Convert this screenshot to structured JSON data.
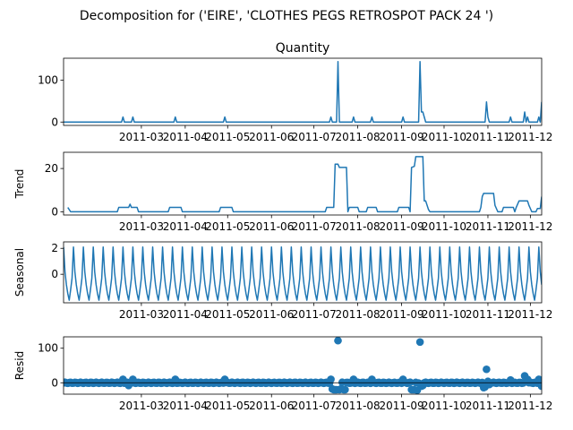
{
  "chart_data": {
    "type": "line",
    "suptitle": "Decomposition for ('EIRE', 'CLOTHES PEGS RETROSPOT PACK 24 ')",
    "color": "#1f77b4",
    "x_range": [
      "2011-01-05",
      "2011-12-09"
    ],
    "x_ticks": [
      "2011-03",
      "2011-04",
      "2011-05",
      "2011-06",
      "2011-07",
      "2011-08",
      "2011-09",
      "2011-10",
      "2011-11",
      "2011-12"
    ],
    "x_tick_dates": [
      "2011-03-01",
      "2011-04-01",
      "2011-05-01",
      "2011-06-01",
      "2011-07-01",
      "2011-08-01",
      "2011-09-01",
      "2011-10-01",
      "2011-11-01",
      "2011-12-01"
    ],
    "panels": [
      {
        "title": "Quantity",
        "ylabel": "",
        "kind": "line",
        "ylim": [
          -8,
          152
        ],
        "yticks": [
          0,
          100
        ],
        "base": 0,
        "points": [
          [
            "2011-01-05",
            0
          ],
          [
            "2011-02-15",
            0
          ],
          [
            "2011-02-16",
            12
          ],
          [
            "2011-02-17",
            0
          ],
          [
            "2011-02-22",
            0
          ],
          [
            "2011-02-23",
            12
          ],
          [
            "2011-02-24",
            0
          ],
          [
            "2011-03-24",
            0
          ],
          [
            "2011-03-25",
            12
          ],
          [
            "2011-03-26",
            0
          ],
          [
            "2011-04-28",
            0
          ],
          [
            "2011-04-29",
            12
          ],
          [
            "2011-04-30",
            0
          ],
          [
            "2011-07-12",
            0
          ],
          [
            "2011-07-13",
            12
          ],
          [
            "2011-07-14",
            0
          ],
          [
            "2011-07-17",
            0
          ],
          [
            "2011-07-18",
            144
          ],
          [
            "2011-07-19",
            0
          ],
          [
            "2011-07-28",
            0
          ],
          [
            "2011-07-29",
            12
          ],
          [
            "2011-07-30",
            0
          ],
          [
            "2011-08-10",
            0
          ],
          [
            "2011-08-11",
            12
          ],
          [
            "2011-08-12",
            0
          ],
          [
            "2011-09-01",
            0
          ],
          [
            "2011-09-02",
            12
          ],
          [
            "2011-09-03",
            0
          ],
          [
            "2011-09-13",
            0
          ],
          [
            "2011-09-14",
            144
          ],
          [
            "2011-09-15",
            24
          ],
          [
            "2011-09-16",
            24
          ],
          [
            "2011-09-17",
            12
          ],
          [
            "2011-09-18",
            0
          ],
          [
            "2011-10-30",
            0
          ],
          [
            "2011-10-31",
            48
          ],
          [
            "2011-11-01",
            12
          ],
          [
            "2011-11-02",
            0
          ],
          [
            "2011-11-16",
            0
          ],
          [
            "2011-11-17",
            12
          ],
          [
            "2011-11-18",
            0
          ],
          [
            "2011-11-26",
            0
          ],
          [
            "2011-11-27",
            24
          ],
          [
            "2011-11-28",
            0
          ],
          [
            "2011-11-29",
            12
          ],
          [
            "2011-11-30",
            0
          ],
          [
            "2011-12-06",
            0
          ],
          [
            "2011-12-07",
            12
          ],
          [
            "2011-12-08",
            0
          ],
          [
            "2011-12-09",
            48
          ]
        ]
      },
      {
        "title": "",
        "ylabel": "Trend",
        "kind": "line",
        "ylim": [
          -1.5,
          27.5
        ],
        "yticks": [
          0,
          20
        ],
        "base": 0,
        "points": [
          [
            "2011-01-08",
            2
          ],
          [
            "2011-01-10",
            0
          ],
          [
            "2011-02-12",
            0
          ],
          [
            "2011-02-13",
            2
          ],
          [
            "2011-02-20",
            2
          ],
          [
            "2011-02-21",
            3.5
          ],
          [
            "2011-02-22",
            2
          ],
          [
            "2011-02-26",
            2
          ],
          [
            "2011-02-27",
            0
          ],
          [
            "2011-03-20",
            0
          ],
          [
            "2011-03-21",
            2
          ],
          [
            "2011-03-29",
            2
          ],
          [
            "2011-03-30",
            0
          ],
          [
            "2011-04-25",
            0
          ],
          [
            "2011-04-26",
            2
          ],
          [
            "2011-05-04",
            2
          ],
          [
            "2011-05-05",
            0
          ],
          [
            "2011-07-09",
            0
          ],
          [
            "2011-07-10",
            2
          ],
          [
            "2011-07-15",
            2
          ],
          [
            "2011-07-16",
            22
          ],
          [
            "2011-07-18",
            22
          ],
          [
            "2011-07-19",
            20.5
          ],
          [
            "2011-07-24",
            20.5
          ],
          [
            "2011-07-25",
            0
          ],
          [
            "2011-07-26",
            2
          ],
          [
            "2011-08-01",
            2
          ],
          [
            "2011-08-02",
            0
          ],
          [
            "2011-08-07",
            0
          ],
          [
            "2011-08-08",
            2
          ],
          [
            "2011-08-14",
            2
          ],
          [
            "2011-08-15",
            0
          ],
          [
            "2011-08-29",
            0
          ],
          [
            "2011-08-30",
            2
          ],
          [
            "2011-09-06",
            2
          ],
          [
            "2011-09-07",
            0
          ],
          [
            "2011-09-08",
            20.5
          ],
          [
            "2011-09-10",
            21
          ],
          [
            "2011-09-11",
            25.5
          ],
          [
            "2011-09-16",
            25.5
          ],
          [
            "2011-09-17",
            5
          ],
          [
            "2011-09-18",
            5
          ],
          [
            "2011-09-20",
            1
          ],
          [
            "2011-09-21",
            0
          ],
          [
            "2011-10-26",
            0
          ],
          [
            "2011-10-27",
            2
          ],
          [
            "2011-10-28",
            7
          ],
          [
            "2011-10-29",
            8.5
          ],
          [
            "2011-11-05",
            8.5
          ],
          [
            "2011-11-06",
            3
          ],
          [
            "2011-11-08",
            0
          ],
          [
            "2011-11-11",
            0
          ],
          [
            "2011-11-12",
            2
          ],
          [
            "2011-11-19",
            2
          ],
          [
            "2011-11-20",
            0
          ],
          [
            "2011-11-21",
            2
          ],
          [
            "2011-11-22",
            3.5
          ],
          [
            "2011-11-23",
            5
          ],
          [
            "2011-11-29",
            5
          ],
          [
            "2011-11-30",
            3
          ],
          [
            "2011-12-01",
            1.5
          ],
          [
            "2011-12-02",
            0
          ],
          [
            "2011-12-05",
            0
          ],
          [
            "2011-12-06",
            1.5
          ],
          [
            "2011-12-08",
            1.5
          ],
          [
            "2011-12-09",
            7
          ]
        ]
      },
      {
        "title": "",
        "ylabel": "Seasonal",
        "kind": "seasonal",
        "ylim": [
          -2.2,
          2.5
        ],
        "yticks": [
          0,
          2
        ],
        "period_days": 7,
        "pattern": [
          2.1,
          0.2,
          -0.8,
          -1.5,
          -2.0,
          -1.2,
          -0.3
        ]
      },
      {
        "title": "",
        "ylabel": "Resid",
        "kind": "scatter",
        "ylim": [
          -33,
          133
        ],
        "yticks": [
          0,
          100
        ],
        "base": 0,
        "baseline_jitter": 1.5,
        "outliers": [
          [
            "2011-02-16",
            10
          ],
          [
            "2011-02-20",
            -8
          ],
          [
            "2011-02-23",
            10
          ],
          [
            "2011-03-25",
            10
          ],
          [
            "2011-04-29",
            10
          ],
          [
            "2011-07-13",
            10
          ],
          [
            "2011-07-14",
            -18
          ],
          [
            "2011-07-15",
            -20
          ],
          [
            "2011-07-16",
            -20
          ],
          [
            "2011-07-17",
            -20
          ],
          [
            "2011-07-18",
            122
          ],
          [
            "2011-07-19",
            -20
          ],
          [
            "2011-07-20",
            -18
          ],
          [
            "2011-07-22",
            -20
          ],
          [
            "2011-07-23",
            -20
          ],
          [
            "2011-07-29",
            10
          ],
          [
            "2011-08-11",
            10
          ],
          [
            "2011-09-02",
            10
          ],
          [
            "2011-09-08",
            -20
          ],
          [
            "2011-09-09",
            -20
          ],
          [
            "2011-09-10",
            -20
          ],
          [
            "2011-09-12",
            -22
          ],
          [
            "2011-09-14",
            118
          ],
          [
            "2011-09-15",
            -10
          ],
          [
            "2011-09-16",
            -8
          ],
          [
            "2011-10-29",
            -14
          ],
          [
            "2011-10-30",
            -12
          ],
          [
            "2011-10-31",
            39
          ],
          [
            "2011-11-01",
            4
          ],
          [
            "2011-11-02",
            -5
          ],
          [
            "2011-11-17",
            8
          ],
          [
            "2011-11-27",
            20
          ],
          [
            "2011-11-28",
            10
          ],
          [
            "2011-11-29",
            10
          ],
          [
            "2011-12-07",
            10
          ],
          [
            "2011-12-09",
            -10
          ]
        ]
      }
    ]
  }
}
